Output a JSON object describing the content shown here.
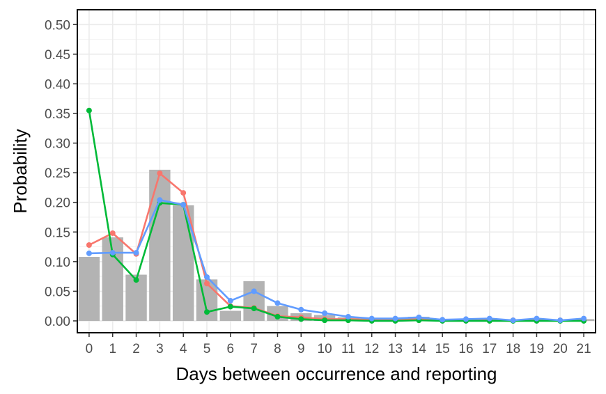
{
  "chart_data": {
    "type": "bar+line",
    "xlabel": "Days between occurrence and reporting",
    "ylabel": "Probability",
    "x": [
      0,
      1,
      2,
      3,
      4,
      5,
      6,
      7,
      8,
      9,
      10,
      11,
      12,
      13,
      14,
      15,
      16,
      17,
      18,
      19,
      20,
      21
    ],
    "x_ticks": [
      "0",
      "1",
      "2",
      "3",
      "4",
      "5",
      "6",
      "7",
      "8",
      "9",
      "10",
      "11",
      "12",
      "13",
      "14",
      "15",
      "16",
      "17",
      "18",
      "19",
      "20",
      "21"
    ],
    "y_ticks": [
      "0.00",
      "0.05",
      "0.10",
      "0.15",
      "0.20",
      "0.25",
      "0.30",
      "0.35",
      "0.40",
      "0.45",
      "0.50"
    ],
    "ylim": [
      -0.02,
      0.525
    ],
    "xlim": [
      -0.5,
      21.5
    ],
    "grid": true,
    "bars": {
      "color": "#b3b3b3",
      "values": [
        0.108,
        0.141,
        0.078,
        0.255,
        0.195,
        0.07,
        0.017,
        0.067,
        0.025,
        0.013,
        0.01,
        0.006,
        0.004,
        0.003,
        0.007,
        0.002,
        0.002,
        0.004,
        0.001,
        0.003,
        0.001,
        0.003
      ]
    },
    "series": [
      {
        "color": "#f8766d",
        "values": [
          0.128,
          0.148,
          0.113,
          0.249,
          0.216,
          0.063,
          0.025,
          0.022,
          0.008,
          0.006,
          0.003,
          0.003,
          0.002,
          0.002,
          0.004,
          0.001,
          0.001,
          0.002,
          0.001,
          0.002,
          0.001,
          0.002
        ]
      },
      {
        "color": "#00ba38",
        "values": [
          0.355,
          0.112,
          0.069,
          0.199,
          0.196,
          0.015,
          0.024,
          0.021,
          0.007,
          0.003,
          0.001,
          0.001,
          0.0,
          0.0,
          0.001,
          0.0,
          0.0,
          0.0,
          0.0,
          0.0,
          0.0,
          0.0
        ]
      },
      {
        "color": "#619cff",
        "values": [
          0.114,
          0.115,
          0.115,
          0.204,
          0.196,
          0.074,
          0.034,
          0.05,
          0.03,
          0.019,
          0.013,
          0.007,
          0.004,
          0.004,
          0.006,
          0.002,
          0.003,
          0.004,
          0.001,
          0.004,
          0.001,
          0.004
        ]
      }
    ]
  }
}
